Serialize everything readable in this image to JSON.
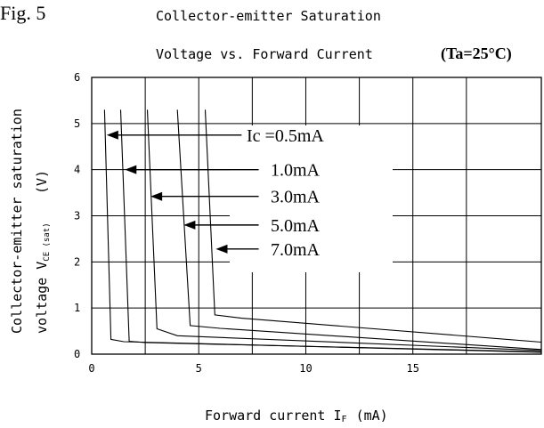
{
  "figure_label": "Fig. 5",
  "condition": "(Ta=25°C)",
  "chart_data": {
    "type": "line",
    "title": [
      "Collector-emitter Saturation",
      "Voltage vs. Forward Current"
    ],
    "xlabel": "Forward current I",
    "xlabel_sub": "F",
    "xlabel_unit": "(mA)",
    "ylabel_line1": "Collector-emitter saturation",
    "ylabel_line2": "voltage V",
    "ylabel_sub": "CE (sat)",
    "ylabel_unit": "(V)",
    "xlim": [
      0,
      21
    ],
    "ylim": [
      0,
      6
    ],
    "x_ticks": [
      0,
      5,
      10,
      15
    ],
    "y_ticks": [
      0,
      1,
      2,
      3,
      4,
      5,
      6
    ],
    "x_grid": [
      0,
      2.5,
      5,
      7.5,
      10,
      12.5,
      15,
      17.5,
      21
    ],
    "grid": true,
    "series_label_prefix": "Ic =",
    "series": [
      {
        "name": "0.5mA",
        "points": [
          [
            0.6,
            5.3
          ],
          [
            0.9,
            0.32
          ],
          [
            1.5,
            0.27
          ],
          [
            21,
            0.04
          ]
        ]
      },
      {
        "name": "1.0mA",
        "points": [
          [
            1.35,
            5.3
          ],
          [
            1.75,
            0.28
          ],
          [
            2.5,
            0.25
          ],
          [
            21,
            0.05
          ]
        ]
      },
      {
        "name": "3.0mA",
        "points": [
          [
            2.6,
            5.3
          ],
          [
            3.05,
            0.55
          ],
          [
            4.0,
            0.4
          ],
          [
            21,
            0.08
          ]
        ]
      },
      {
        "name": "5.0mA",
        "points": [
          [
            4.0,
            5.3
          ],
          [
            4.6,
            0.62
          ],
          [
            6.0,
            0.56
          ],
          [
            21,
            0.1
          ]
        ]
      },
      {
        "name": "7.0mA",
        "points": [
          [
            5.3,
            5.3
          ],
          [
            5.75,
            0.85
          ],
          [
            7.0,
            0.78
          ],
          [
            21,
            0.26
          ]
        ]
      }
    ],
    "annotations": [
      {
        "series": 0,
        "arrow_tip": [
          0.7,
          4.75
        ],
        "arrow_tail": [
          7.0,
          4.75
        ]
      },
      {
        "series": 1,
        "arrow_tip": [
          1.55,
          4.0
        ],
        "arrow_tail": [
          7.8,
          4.0
        ]
      },
      {
        "series": 2,
        "arrow_tip": [
          2.75,
          3.42
        ],
        "arrow_tail": [
          7.8,
          3.42
        ]
      },
      {
        "series": 3,
        "arrow_tip": [
          4.3,
          2.8
        ],
        "arrow_tail": [
          7.8,
          2.8
        ]
      },
      {
        "series": 4,
        "arrow_tip": [
          5.8,
          2.28
        ],
        "arrow_tail": [
          7.8,
          2.28
        ]
      }
    ]
  }
}
